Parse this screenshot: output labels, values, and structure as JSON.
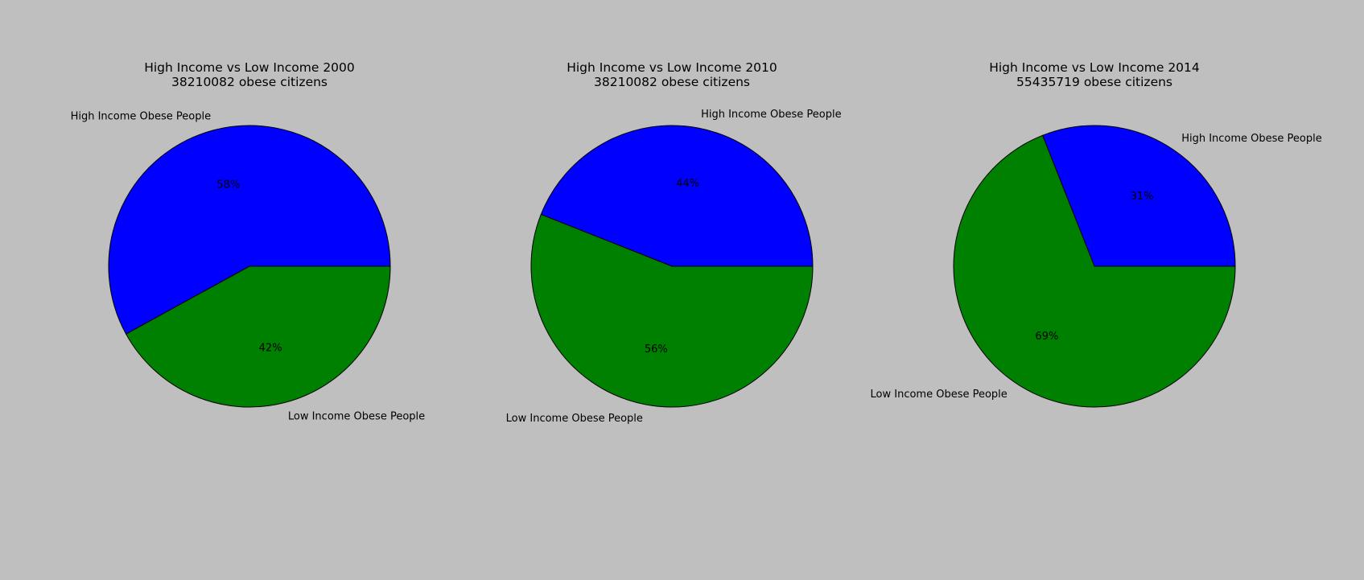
{
  "colors": {
    "background": "#bfbfbf",
    "high": "#0000ff",
    "low": "#008000",
    "edge": "#000000"
  },
  "chart_data": [
    {
      "type": "pie",
      "title": "High Income vs Low Income 2000",
      "subtitle": "38210082 obese citizens",
      "labels": [
        "High Income Obese People",
        "Low Income Obese People"
      ],
      "values": [
        58,
        42
      ],
      "pct_labels": [
        "58%",
        "42%"
      ],
      "colors": [
        "#0000ff",
        "#008000"
      ],
      "start_angle": 0
    },
    {
      "type": "pie",
      "title": "High Income vs Low Income 2010",
      "subtitle": "38210082 obese citizens",
      "labels": [
        "High Income Obese People",
        "Low Income Obese People"
      ],
      "values": [
        44,
        56
      ],
      "pct_labels": [
        "44%",
        "56%"
      ],
      "colors": [
        "#0000ff",
        "#008000"
      ],
      "start_angle": 0
    },
    {
      "type": "pie",
      "title": "High Income vs Low Income 2014",
      "subtitle": "55435719 obese citizens",
      "labels": [
        "High Income Obese People",
        "Low Income Obese People"
      ],
      "values": [
        31,
        69
      ],
      "pct_labels": [
        "31%",
        "69%"
      ],
      "colors": [
        "#0000ff",
        "#008000"
      ],
      "start_angle": 0
    }
  ]
}
